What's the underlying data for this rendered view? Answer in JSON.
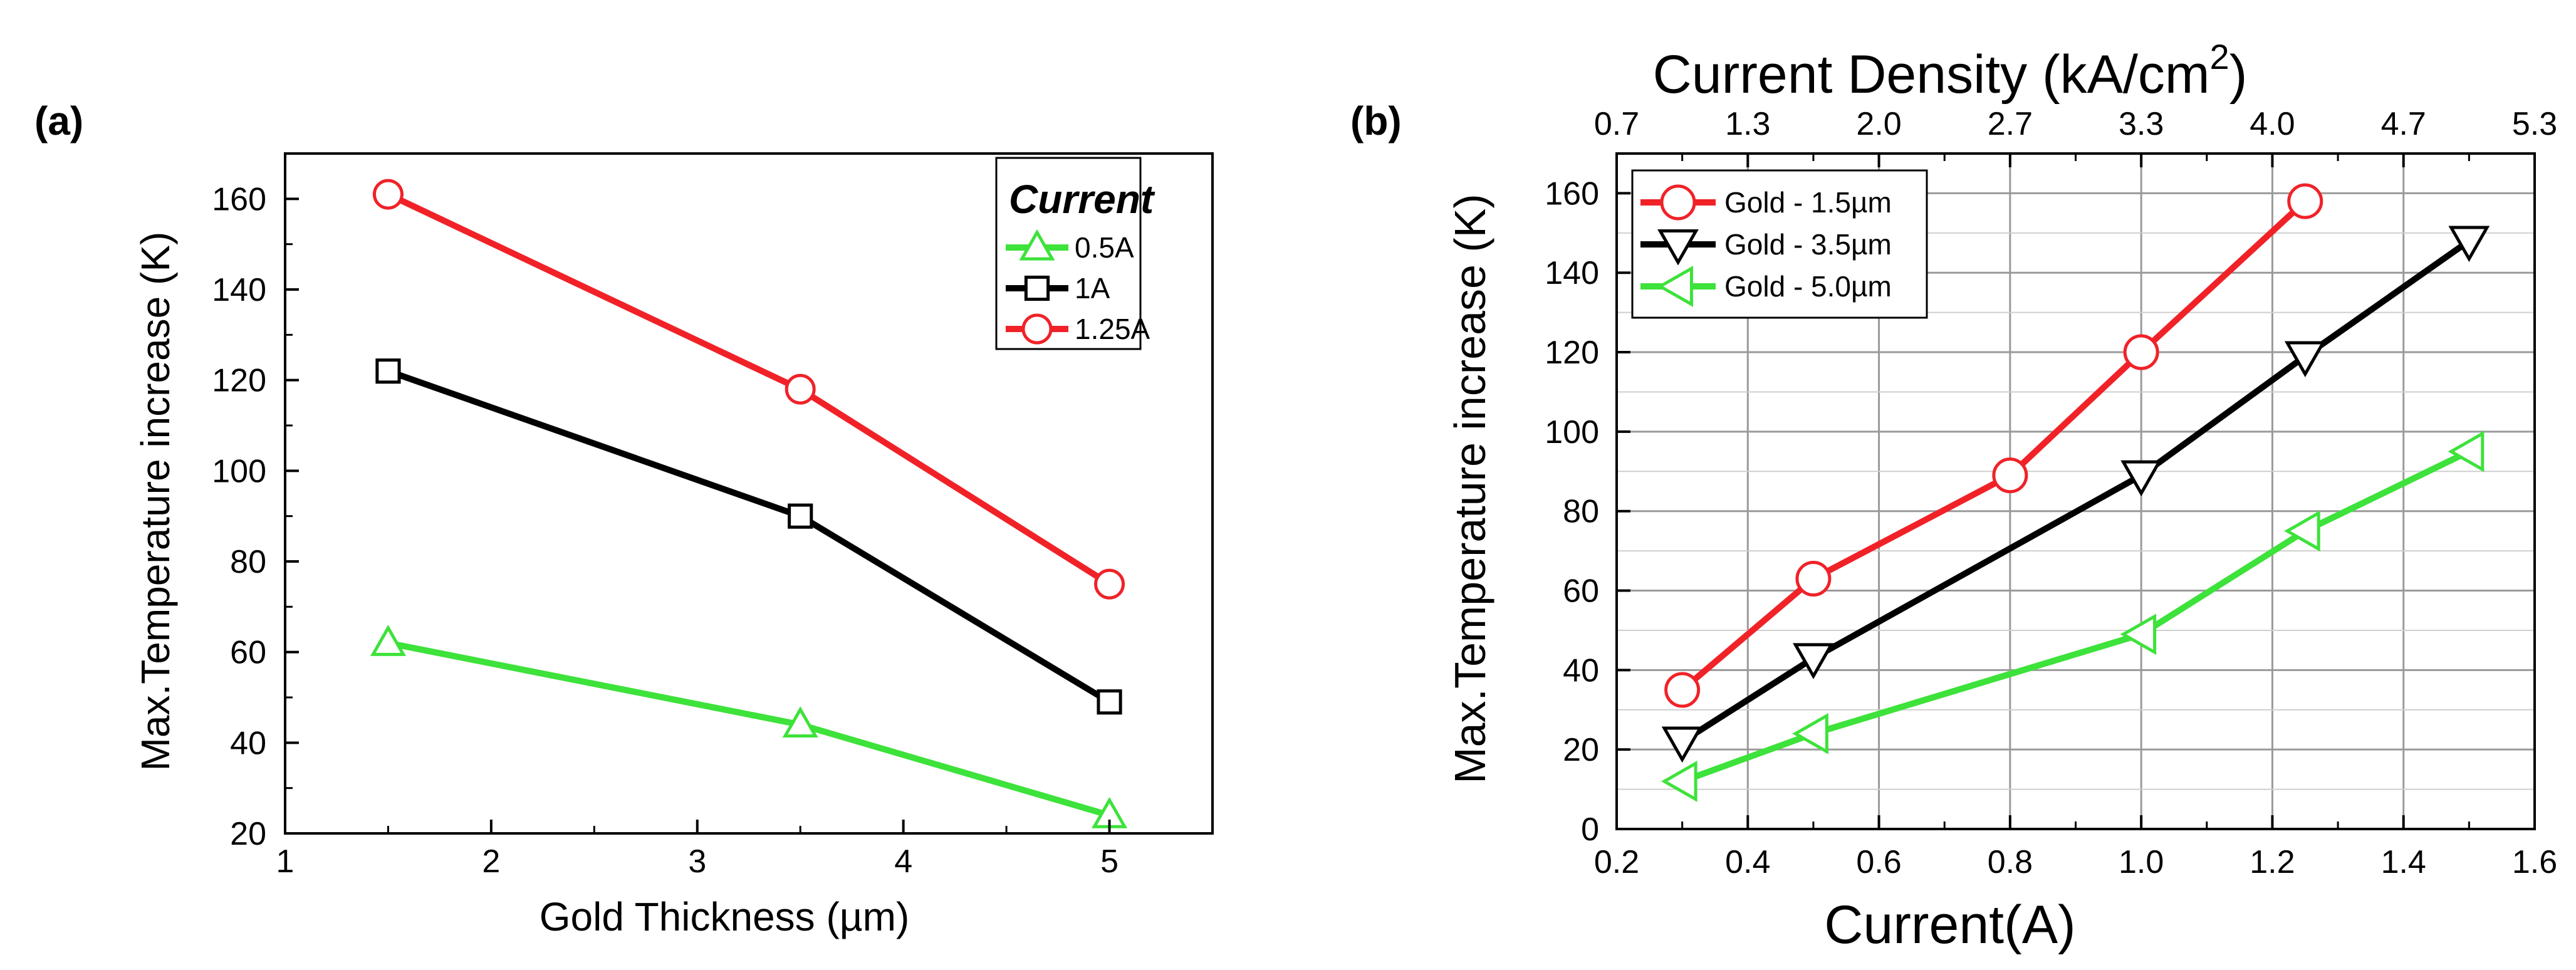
{
  "chart_data": [
    {
      "panel": "(a)",
      "type": "line",
      "title": "",
      "xlabel": "Gold Thickness (µm)",
      "ylabel": "Max.Temperature increase (K)",
      "xlim": [
        1,
        5.5
      ],
      "ylim": [
        20,
        170
      ],
      "x_ticks": [
        1,
        2,
        3,
        4,
        5
      ],
      "y_ticks": [
        20,
        40,
        60,
        80,
        100,
        120,
        140,
        160
      ],
      "grid": false,
      "legend_title": "Current",
      "legend_position": "top-right",
      "x": [
        1.5,
        3.5,
        5.0
      ],
      "series": [
        {
          "name": "0.5A",
          "color": "#3de23a",
          "marker": "triangle-up",
          "values": [
            62,
            44,
            24
          ]
        },
        {
          "name": "1A",
          "color": "#000000",
          "marker": "square",
          "values": [
            122,
            90,
            49
          ]
        },
        {
          "name": "1.25A",
          "color": "#f02228",
          "marker": "circle",
          "values": [
            161,
            118,
            75
          ]
        }
      ]
    },
    {
      "panel": "(b)",
      "type": "line",
      "title": "",
      "xlabel": "Current(A)",
      "ylabel": "Max.Temperature increase (K)",
      "x2label": "Current Density (kA/cm",
      "x2label_sup": "2",
      "x2label_end": ")",
      "xlim": [
        0.2,
        1.6
      ],
      "ylim": [
        0,
        170
      ],
      "x_ticks": [
        0.2,
        0.4,
        0.6,
        0.8,
        1.0,
        1.2,
        1.4,
        1.6
      ],
      "x_tick_labels": [
        "0.2",
        "0.4",
        "0.6",
        "0.8",
        "1.0",
        "1.2",
        "1.4",
        "1.6"
      ],
      "x2_tick_labels": [
        "0.7",
        "1.3",
        "2.0",
        "2.7",
        "3.3",
        "4.0",
        "4.7",
        "5.3"
      ],
      "y_ticks": [
        0,
        20,
        40,
        60,
        80,
        100,
        120,
        140,
        160
      ],
      "grid": true,
      "legend_position": "top-left",
      "series": [
        {
          "name": "Gold - 1.5µm",
          "color": "#f02228",
          "marker": "circle",
          "x": [
            0.3,
            0.5,
            0.8,
            1.0,
            1.25
          ],
          "values": [
            35,
            63,
            89,
            120,
            158
          ]
        },
        {
          "name": "Gold - 3.5µm",
          "color": "#000000",
          "marker": "triangle-down",
          "x": [
            0.3,
            0.5,
            1.0,
            1.25,
            1.5
          ],
          "values": [
            22,
            43,
            89,
            119,
            148
          ]
        },
        {
          "name": "Gold - 5.0µm",
          "color": "#3de23a",
          "marker": "triangle-left",
          "x": [
            0.3,
            0.5,
            1.0,
            1.25,
            1.5
          ],
          "values": [
            12,
            24,
            49,
            75,
            95
          ]
        }
      ]
    }
  ]
}
